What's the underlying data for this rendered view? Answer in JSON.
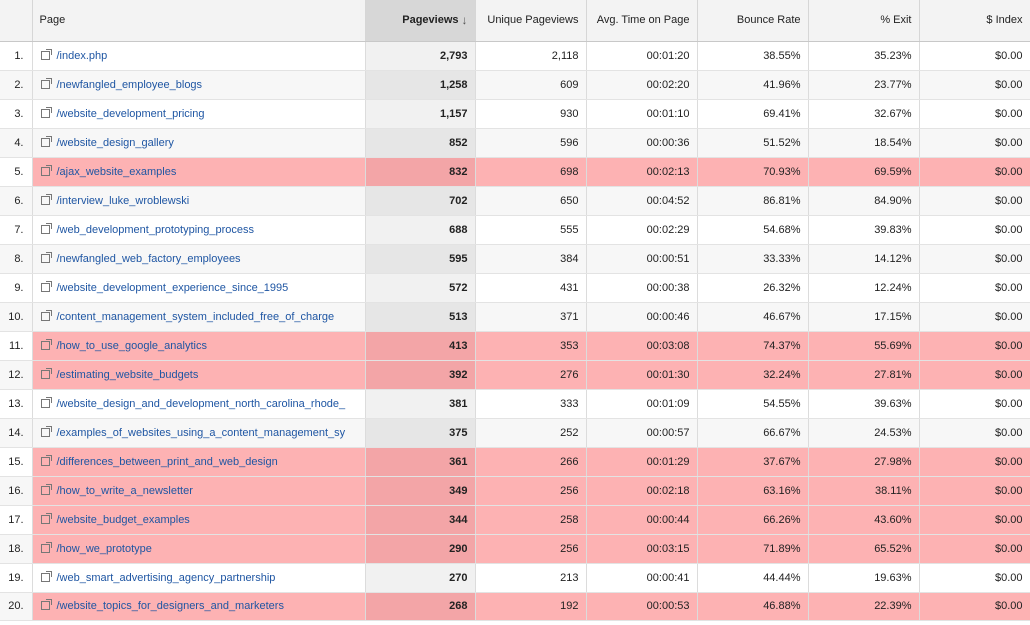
{
  "columns": {
    "page": "Page",
    "pageviews": "Pageviews",
    "unique_pageviews": "Unique Pageviews",
    "avg_time": "Avg. Time on Page",
    "bounce_rate": "Bounce Rate",
    "exit": "% Exit",
    "index": "$ Index",
    "sort_icon": "arrow-down-icon"
  },
  "highlight_color": "#fdb2b3",
  "link_color": "#1f56a3",
  "rows": [
    {
      "n": "1.",
      "page": "/index.php",
      "pv": "2,793",
      "upv": "2,118",
      "time": "00:01:20",
      "bounce": "38.55%",
      "exit": "35.23%",
      "index": "$0.00",
      "hl": false
    },
    {
      "n": "2.",
      "page": "/newfangled_employee_blogs",
      "pv": "1,258",
      "upv": "609",
      "time": "00:02:20",
      "bounce": "41.96%",
      "exit": "23.77%",
      "index": "$0.00",
      "hl": false
    },
    {
      "n": "3.",
      "page": "/website_development_pricing",
      "pv": "1,157",
      "upv": "930",
      "time": "00:01:10",
      "bounce": "69.41%",
      "exit": "32.67%",
      "index": "$0.00",
      "hl": false
    },
    {
      "n": "4.",
      "page": "/website_design_gallery",
      "pv": "852",
      "upv": "596",
      "time": "00:00:36",
      "bounce": "51.52%",
      "exit": "18.54%",
      "index": "$0.00",
      "hl": false
    },
    {
      "n": "5.",
      "page": "/ajax_website_examples",
      "pv": "832",
      "upv": "698",
      "time": "00:02:13",
      "bounce": "70.93%",
      "exit": "69.59%",
      "index": "$0.00",
      "hl": true
    },
    {
      "n": "6.",
      "page": "/interview_luke_wroblewski",
      "pv": "702",
      "upv": "650",
      "time": "00:04:52",
      "bounce": "86.81%",
      "exit": "84.90%",
      "index": "$0.00",
      "hl": false
    },
    {
      "n": "7.",
      "page": "/web_development_prototyping_process",
      "pv": "688",
      "upv": "555",
      "time": "00:02:29",
      "bounce": "54.68%",
      "exit": "39.83%",
      "index": "$0.00",
      "hl": false
    },
    {
      "n": "8.",
      "page": "/newfangled_web_factory_employees",
      "pv": "595",
      "upv": "384",
      "time": "00:00:51",
      "bounce": "33.33%",
      "exit": "14.12%",
      "index": "$0.00",
      "hl": false
    },
    {
      "n": "9.",
      "page": "/website_development_experience_since_1995",
      "pv": "572",
      "upv": "431",
      "time": "00:00:38",
      "bounce": "26.32%",
      "exit": "12.24%",
      "index": "$0.00",
      "hl": false
    },
    {
      "n": "10.",
      "page": "/content_management_system_included_free_of_charge",
      "pv": "513",
      "upv": "371",
      "time": "00:00:46",
      "bounce": "46.67%",
      "exit": "17.15%",
      "index": "$0.00",
      "hl": false
    },
    {
      "n": "11.",
      "page": "/how_to_use_google_analytics",
      "pv": "413",
      "upv": "353",
      "time": "00:03:08",
      "bounce": "74.37%",
      "exit": "55.69%",
      "index": "$0.00",
      "hl": true
    },
    {
      "n": "12.",
      "page": "/estimating_website_budgets",
      "pv": "392",
      "upv": "276",
      "time": "00:01:30",
      "bounce": "32.24%",
      "exit": "27.81%",
      "index": "$0.00",
      "hl": true
    },
    {
      "n": "13.",
      "page": "/website_design_and_development_north_carolina_rhode_",
      "pv": "381",
      "upv": "333",
      "time": "00:01:09",
      "bounce": "54.55%",
      "exit": "39.63%",
      "index": "$0.00",
      "hl": false
    },
    {
      "n": "14.",
      "page": "/examples_of_websites_using_a_content_management_sy",
      "pv": "375",
      "upv": "252",
      "time": "00:00:57",
      "bounce": "66.67%",
      "exit": "24.53%",
      "index": "$0.00",
      "hl": false
    },
    {
      "n": "15.",
      "page": "/differences_between_print_and_web_design",
      "pv": "361",
      "upv": "266",
      "time": "00:01:29",
      "bounce": "37.67%",
      "exit": "27.98%",
      "index": "$0.00",
      "hl": true
    },
    {
      "n": "16.",
      "page": "/how_to_write_a_newsletter",
      "pv": "349",
      "upv": "256",
      "time": "00:02:18",
      "bounce": "63.16%",
      "exit": "38.11%",
      "index": "$0.00",
      "hl": true
    },
    {
      "n": "17.",
      "page": "/website_budget_examples",
      "pv": "344",
      "upv": "258",
      "time": "00:00:44",
      "bounce": "66.26%",
      "exit": "43.60%",
      "index": "$0.00",
      "hl": true
    },
    {
      "n": "18.",
      "page": "/how_we_prototype",
      "pv": "290",
      "upv": "256",
      "time": "00:03:15",
      "bounce": "71.89%",
      "exit": "65.52%",
      "index": "$0.00",
      "hl": true
    },
    {
      "n": "19.",
      "page": "/web_smart_advertising_agency_partnership",
      "pv": "270",
      "upv": "213",
      "time": "00:00:41",
      "bounce": "44.44%",
      "exit": "19.63%",
      "index": "$0.00",
      "hl": false
    },
    {
      "n": "20.",
      "page": "/website_topics_for_designers_and_marketers",
      "pv": "268",
      "upv": "192",
      "time": "00:00:53",
      "bounce": "46.88%",
      "exit": "22.39%",
      "index": "$0.00",
      "hl": true
    }
  ]
}
